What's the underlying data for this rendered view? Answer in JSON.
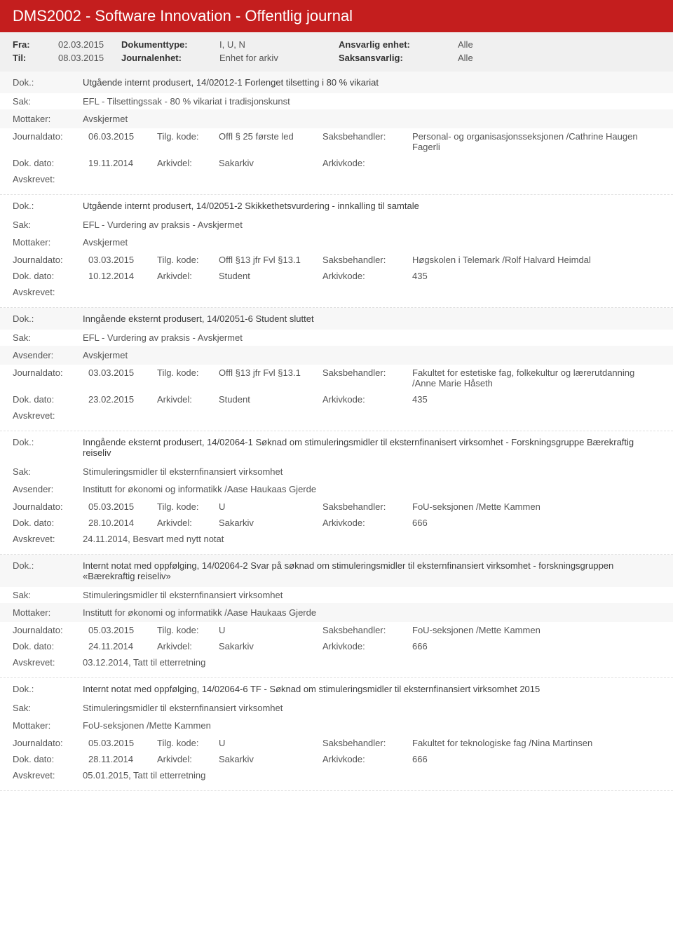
{
  "header": {
    "title": "DMS2002 - Software Innovation - Offentlig journal"
  },
  "filters": {
    "fra_label": "Fra:",
    "fra_value": "02.03.2015",
    "til_label": "Til:",
    "til_value": "08.03.2015",
    "doktype_label": "Dokumenttype:",
    "doktype_value": "I, U, N",
    "journalenhet_label": "Journalenhet:",
    "journalenhet_value": "Enhet for arkiv",
    "ansvarlig_label": "Ansvarlig enhet:",
    "ansvarlig_value": "Alle",
    "saksansvarlig_label": "Saksansvarlig:",
    "saksansvarlig_value": "Alle"
  },
  "labels": {
    "dok": "Dok.:",
    "sak": "Sak:",
    "mottaker": "Mottaker:",
    "avsender": "Avsender:",
    "journaldato": "Journaldato:",
    "tilgkode": "Tilg. kode:",
    "saksbehandler": "Saksbehandler:",
    "dokdato": "Dok. dato:",
    "arkivdel": "Arkivdel:",
    "arkivkode": "Arkivkode:",
    "avskrevet": "Avskrevet:"
  },
  "entries": [
    {
      "dok": "Utgående internt produsert, 14/02012-1 Forlenget tilsetting i 80 % vikariat",
      "sak": "EFL - Tilsettingssak - 80 % vikariat i tradisjonskunst",
      "party_label": "Mottaker:",
      "party": "Avskjermet",
      "journaldato": "06.03.2015",
      "tilgkode": "Offl § 25 første led",
      "saksbehandler": "Personal- og organisasjonsseksjonen /Cathrine Haugen Fagerli",
      "dokdato": "19.11.2014",
      "arkivdel": "Sakarkiv",
      "arkivkode": "",
      "avskrevet": ""
    },
    {
      "dok": "Utgående internt produsert, 14/02051-2 Skikkethetsvurdering - innkalling til samtale",
      "sak": "EFL - Vurdering av praksis - Avskjermet",
      "party_label": "Mottaker:",
      "party": "Avskjermet",
      "journaldato": "03.03.2015",
      "tilgkode": "Offl §13 jfr Fvl §13.1",
      "saksbehandler": "Høgskolen i Telemark /Rolf Halvard Heimdal",
      "dokdato": "10.12.2014",
      "arkivdel": "Student",
      "arkivkode": "435",
      "avskrevet": ""
    },
    {
      "dok": "Inngående eksternt produsert, 14/02051-6 Student sluttet",
      "sak": "EFL - Vurdering av praksis - Avskjermet",
      "party_label": "Avsender:",
      "party": "Avskjermet",
      "journaldato": "03.03.2015",
      "tilgkode": "Offl §13 jfr Fvl §13.1",
      "saksbehandler": "Fakultet for estetiske fag, folkekultur og lærerutdanning /Anne Marie Håseth",
      "dokdato": "23.02.2015",
      "arkivdel": "Student",
      "arkivkode": "435",
      "avskrevet": ""
    },
    {
      "dok": "Inngående eksternt produsert, 14/02064-1 Søknad om stimuleringsmidler til eksternfinanisert virksomhet - Forskningsgruppe Bærekraftig reiseliv",
      "sak": "Stimuleringsmidler til eksternfinansiert virksomhet",
      "party_label": "Avsender:",
      "party": "Institutt for økonomi og informatikk /Aase Haukaas Gjerde",
      "journaldato": "05.03.2015",
      "tilgkode": "U",
      "saksbehandler": "FoU-seksjonen /Mette Kammen",
      "dokdato": "28.10.2014",
      "arkivdel": "Sakarkiv",
      "arkivkode": "666",
      "avskrevet": "24.11.2014, Besvart med nytt notat"
    },
    {
      "dok": "Internt notat med oppfølging, 14/02064-2 Svar på søknad om stimuleringsmidler til eksternfinansiert virksomhet - forskningsgruppen «Bærekraftig reiseliv»",
      "sak": "Stimuleringsmidler til eksternfinansiert virksomhet",
      "party_label": "Mottaker:",
      "party": "Institutt for økonomi og informatikk /Aase Haukaas Gjerde",
      "journaldato": "05.03.2015",
      "tilgkode": "U",
      "saksbehandler": "FoU-seksjonen /Mette Kammen",
      "dokdato": "24.11.2014",
      "arkivdel": "Sakarkiv",
      "arkivkode": "666",
      "avskrevet": "03.12.2014, Tatt til etterretning"
    },
    {
      "dok": "Internt notat med oppfølging, 14/02064-6 TF - Søknad om stimuleringsmidler til eksternfinansiert virksomhet 2015",
      "sak": "Stimuleringsmidler til eksternfinansiert virksomhet",
      "party_label": "Mottaker:",
      "party": "FoU-seksjonen /Mette Kammen",
      "journaldato": "05.03.2015",
      "tilgkode": "U",
      "saksbehandler": "Fakultet for teknologiske fag /Nina Martinsen",
      "dokdato": "28.11.2014",
      "arkivdel": "Sakarkiv",
      "arkivkode": "666",
      "avskrevet": "05.01.2015, Tatt til etterretning"
    }
  ]
}
